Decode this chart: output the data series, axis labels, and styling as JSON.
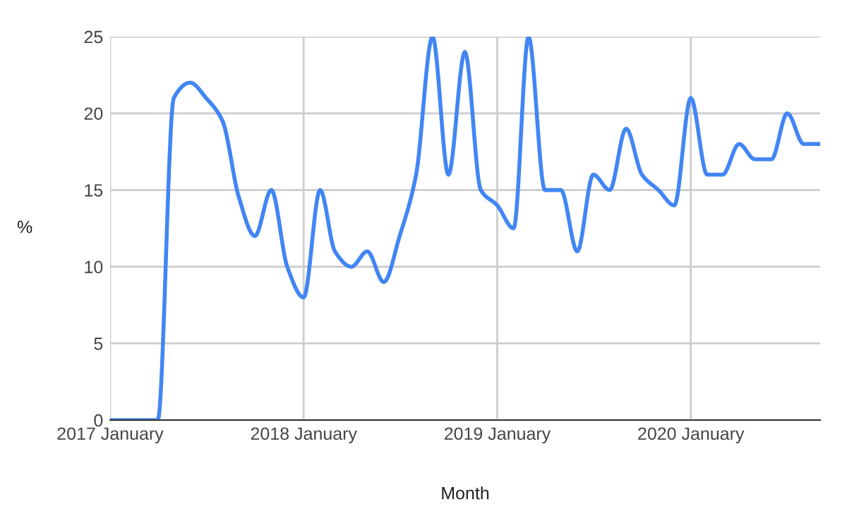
{
  "chart_data": {
    "type": "line",
    "xlabel": "Month",
    "ylabel": "%",
    "x": [
      "2017-01",
      "2017-02",
      "2017-03",
      "2017-04",
      "2017-05",
      "2017-06",
      "2017-07",
      "2017-08",
      "2017-09",
      "2017-10",
      "2017-11",
      "2017-12",
      "2018-01",
      "2018-02",
      "2018-03",
      "2018-04",
      "2018-05",
      "2018-06",
      "2018-07",
      "2018-08",
      "2018-09",
      "2018-10",
      "2018-11",
      "2018-12",
      "2019-01",
      "2019-02",
      "2019-03",
      "2019-04",
      "2019-05",
      "2019-06",
      "2019-07",
      "2019-08",
      "2019-09",
      "2019-10",
      "2019-11",
      "2019-12",
      "2020-01",
      "2020-02",
      "2020-03",
      "2020-04",
      "2020-05",
      "2020-06",
      "2020-07",
      "2020-08",
      "2020-09"
    ],
    "series": [
      {
        "color": "#4285f4",
        "values": [
          0,
          0,
          0,
          0,
          21,
          22,
          21,
          19.5,
          14.5,
          12,
          15,
          10,
          8,
          15,
          11,
          10,
          11,
          9,
          12,
          16,
          25,
          16,
          24,
          15,
          14,
          12.5,
          25,
          15,
          15,
          11,
          16,
          15,
          19,
          16,
          15,
          14,
          21,
          16,
          16,
          18,
          17,
          17,
          20,
          18,
          18
        ]
      }
    ],
    "xlim": [
      "2017-01",
      "2020-09"
    ],
    "xticks": [
      {
        "value": "2017-01",
        "label": "2017 January"
      },
      {
        "value": "2018-01",
        "label": "2018 January"
      },
      {
        "value": "2019-01",
        "label": "2019 January"
      },
      {
        "value": "2020-01",
        "label": "2020 January"
      }
    ],
    "ylim": [
      0,
      25
    ],
    "yticks": [
      0,
      5,
      10,
      15,
      20,
      25
    ],
    "grid": true,
    "marker": "none",
    "line_style": "solid"
  }
}
